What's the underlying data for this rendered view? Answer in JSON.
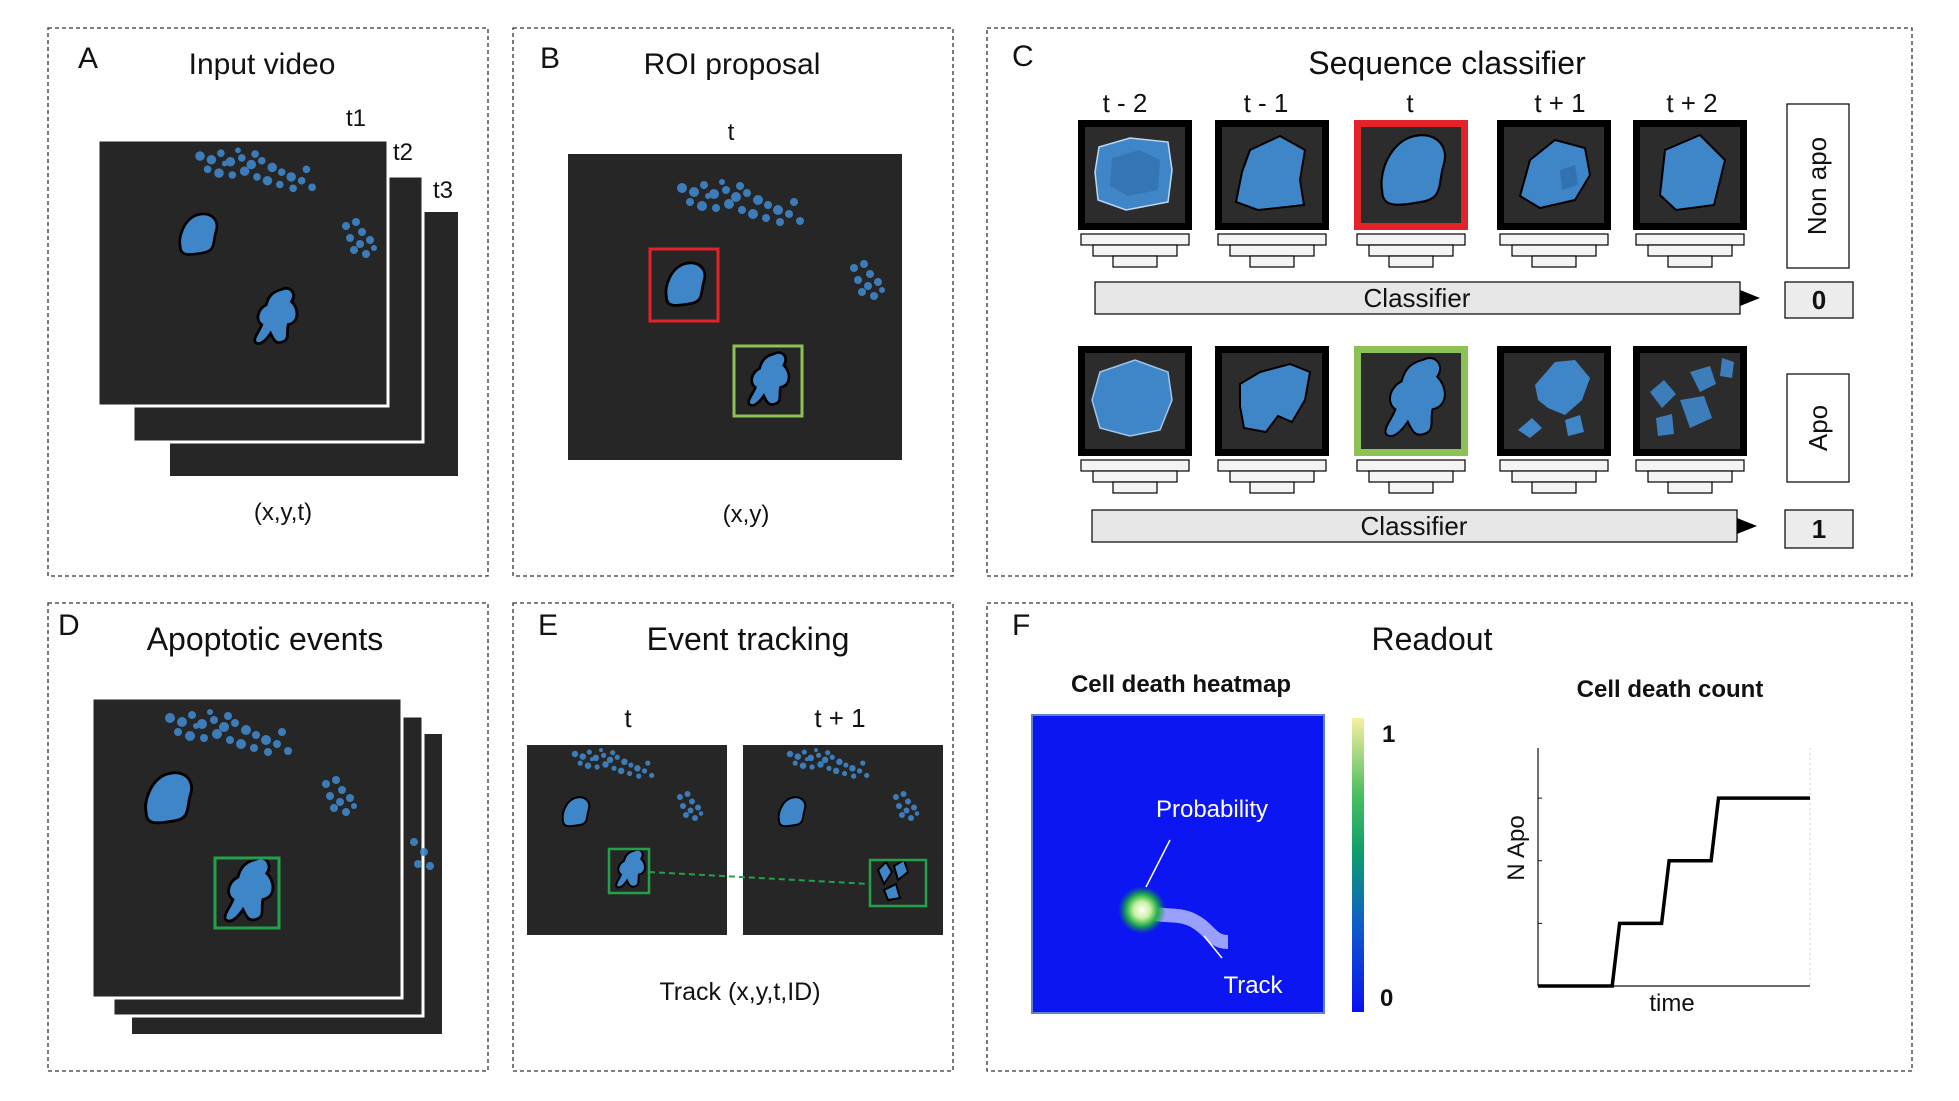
{
  "panels": {
    "a": {
      "letter": "A",
      "title": "Input video",
      "frames": [
        "t1",
        "t2",
        "t3"
      ],
      "caption": "(x,y,t)"
    },
    "b": {
      "letter": "B",
      "title": "ROI proposal",
      "time_label": "t",
      "caption": "(x,y)"
    },
    "c": {
      "letter": "C",
      "title": "Sequence classifier",
      "time_labels": [
        "t - 2",
        "t - 1",
        "t",
        "t + 1",
        "t + 2"
      ],
      "rows": [
        {
          "classifier_label": "Classifier",
          "class_name": "Non apo",
          "output": "0"
        },
        {
          "classifier_label": "Classifier",
          "class_name": "Apo",
          "output": "1"
        }
      ]
    },
    "d": {
      "letter": "D",
      "title": "Apoptotic events"
    },
    "e": {
      "letter": "E",
      "title": "Event tracking",
      "time_labels": [
        "t",
        "t + 1"
      ],
      "caption": "Track (x,y,t,ID)"
    },
    "f": {
      "letter": "F",
      "title": "Readout",
      "heatmap": {
        "title": "Cell death heatmap",
        "probability_label": "Probability",
        "track_label": "Track",
        "colorbar_max": "1",
        "colorbar_min": "0"
      },
      "count": {
        "title": "Cell death count",
        "ylabel": "N Apo",
        "xlabel": "time"
      }
    }
  },
  "colors": {
    "frame_bg": "#262626",
    "cell_blue": "#3f86c9",
    "roi_red": "#e4222a",
    "roi_green": "#8cc255",
    "tracked_green": "#23a14a",
    "heatmap_blue": "#0b16f2"
  },
  "chart_data": {
    "type": "line",
    "title": "Cell death count",
    "xlabel": "time",
    "ylabel": "N Apo",
    "series": [
      {
        "values_x": [
          0,
          3,
          3.3,
          5,
          5.3,
          7,
          7.3,
          11
        ],
        "values_y": [
          0,
          0,
          1,
          1,
          2,
          2,
          3,
          3
        ]
      }
    ],
    "xlim": [
      0,
      11
    ],
    "ylim": [
      0,
      3.8
    ]
  }
}
